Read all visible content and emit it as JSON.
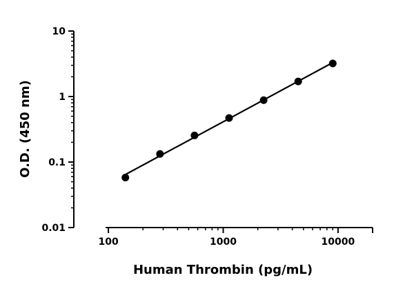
{
  "chart_data": {
    "type": "scatter",
    "title": "",
    "xlabel": "Human Thrombin (pg/mL)",
    "ylabel": "O.D. (450 nm)",
    "xscale": "log",
    "yscale": "log",
    "xlim": [
      50,
      20000
    ],
    "ylim": [
      0.01,
      10
    ],
    "x_ticks": [
      100,
      1000,
      10000
    ],
    "x_tick_labels": [
      "100",
      "1000",
      "10000"
    ],
    "y_ticks": [
      0.01,
      0.1,
      1,
      10
    ],
    "y_tick_labels": [
      "0.01",
      "0.1",
      "1",
      "10"
    ],
    "grid": false,
    "legend": "none",
    "series": [
      {
        "x": [
          140.6,
          281.3,
          562.5,
          1125,
          2250,
          4500,
          9000
        ],
        "y": [
          0.058,
          0.133,
          0.255,
          0.47,
          0.88,
          1.7,
          3.2
        ],
        "color": "#000000",
        "marker": "circle",
        "fit_line": true
      }
    ]
  }
}
